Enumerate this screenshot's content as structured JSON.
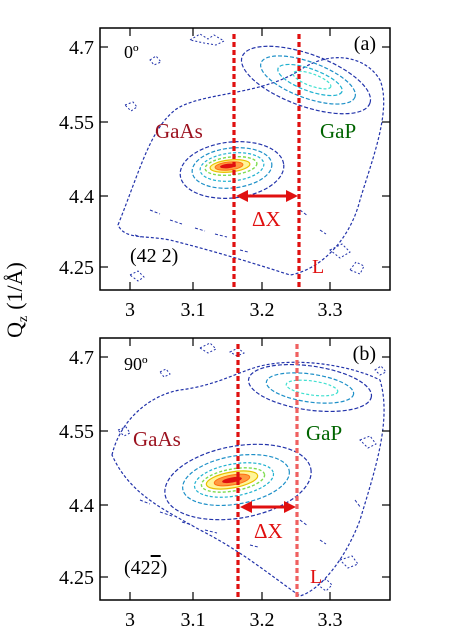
{
  "figure": {
    "ylabel_main": "Q",
    "ylabel_sub": "z",
    "ylabel_unit": "(1/Å)"
  },
  "chart_data": [
    {
      "type": "contour",
      "panel_label": "(a)",
      "angle_label": "0º",
      "reflection_label": "(42 2)",
      "x_ticks": [
        "3",
        "3.1",
        "3.2",
        "3.3"
      ],
      "y_ticks": [
        "4.7",
        "4.55",
        "4.4",
        "4.25"
      ],
      "xlim": [
        2.95,
        3.37
      ],
      "ylim": [
        4.2,
        4.74
      ],
      "peaks": [
        {
          "name": "GaAs",
          "qx": 3.155,
          "qz": 4.46,
          "color": "#9b111e"
        },
        {
          "name": "GaP",
          "qx": 3.27,
          "qz": 4.64,
          "color": "#006400"
        }
      ],
      "markers": {
        "dashed_lines_qx": [
          3.153,
          3.248
        ],
        "delta_label": "ΔX",
        "relaxed_label": "L",
        "arrow_qz": 4.4
      }
    },
    {
      "type": "contour",
      "panel_label": "(b)",
      "angle_label": "90º",
      "reflection_label": "(42",
      "reflection_overbar": "2",
      "reflection_close": ")",
      "x_ticks": [
        "3",
        "3.1",
        "3.2",
        "3.3"
      ],
      "y_ticks": [
        "4.7",
        "4.55",
        "4.4",
        "4.25"
      ],
      "xlim": [
        2.95,
        3.37
      ],
      "ylim": [
        4.2,
        4.74
      ],
      "peaks": [
        {
          "name": "GaAs",
          "qx": 3.16,
          "qz": 4.435,
          "color": "#9b111e"
        },
        {
          "name": "GaP",
          "qx": 3.27,
          "qz": 4.64,
          "color": "#006400"
        }
      ],
      "markers": {
        "dashed_lines_qx": [
          3.157,
          3.244
        ],
        "delta_label": "ΔX",
        "relaxed_label": "L",
        "arrow_qz": 4.4
      }
    }
  ]
}
